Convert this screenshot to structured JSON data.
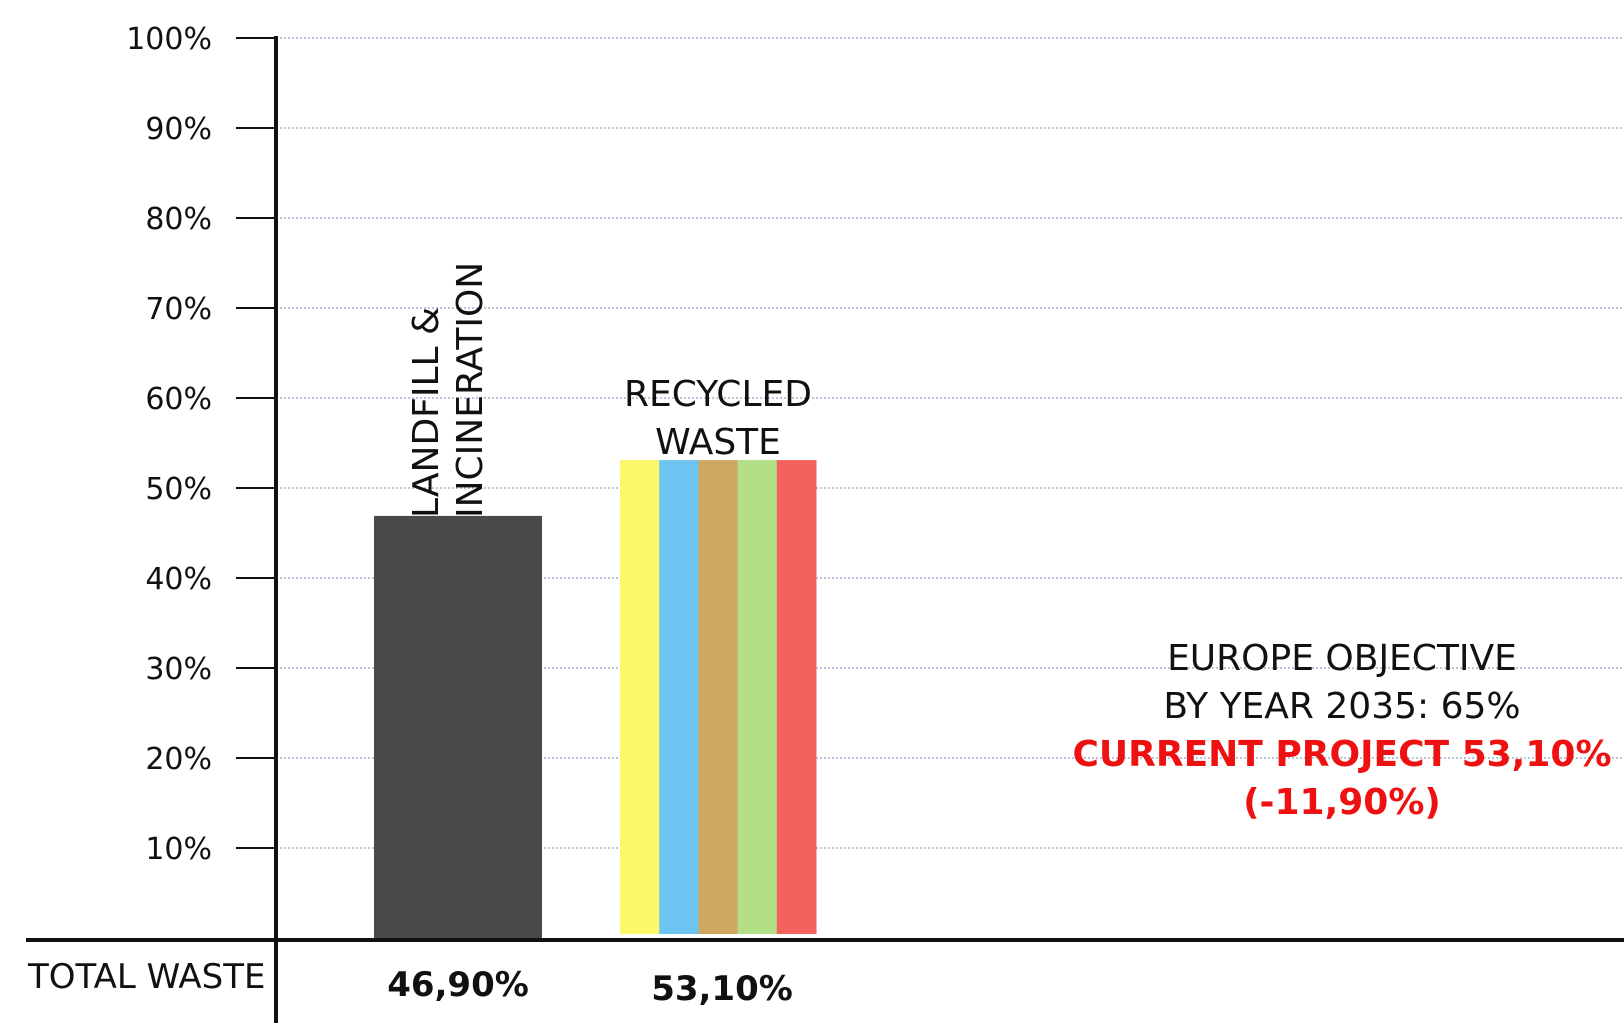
{
  "chart_data": {
    "type": "bar",
    "ylim": [
      0,
      100
    ],
    "yticks": [
      "10%",
      "20%",
      "30%",
      "40%",
      "50%",
      "60%",
      "70%",
      "80%",
      "90%",
      "100%"
    ],
    "grid": true,
    "row_label": "TOTAL WASTE",
    "bars": [
      {
        "label_lines": [
          "LANDFILL &",
          "INCINERATION"
        ],
        "value": 46.9,
        "value_label": "46,90%",
        "color": "#4a4a4a",
        "stacked_horizontally": false
      },
      {
        "label_lines": [
          "RECYCLED",
          "WASTE"
        ],
        "value": 53.1,
        "value_label": "53,10%",
        "stripe_colors": [
          "#fbf86a",
          "#6cc5f0",
          "#cea760",
          "#b2de85",
          "#f4625c"
        ]
      }
    ],
    "annotation": {
      "line1": "EUROPE OBJECTIVE",
      "line2": "BY YEAR 2035: 65%",
      "line3": "CURRENT PROJECT 53,10%",
      "line4": "(-11,90%)",
      "highlight_color": "#ee1111"
    }
  }
}
